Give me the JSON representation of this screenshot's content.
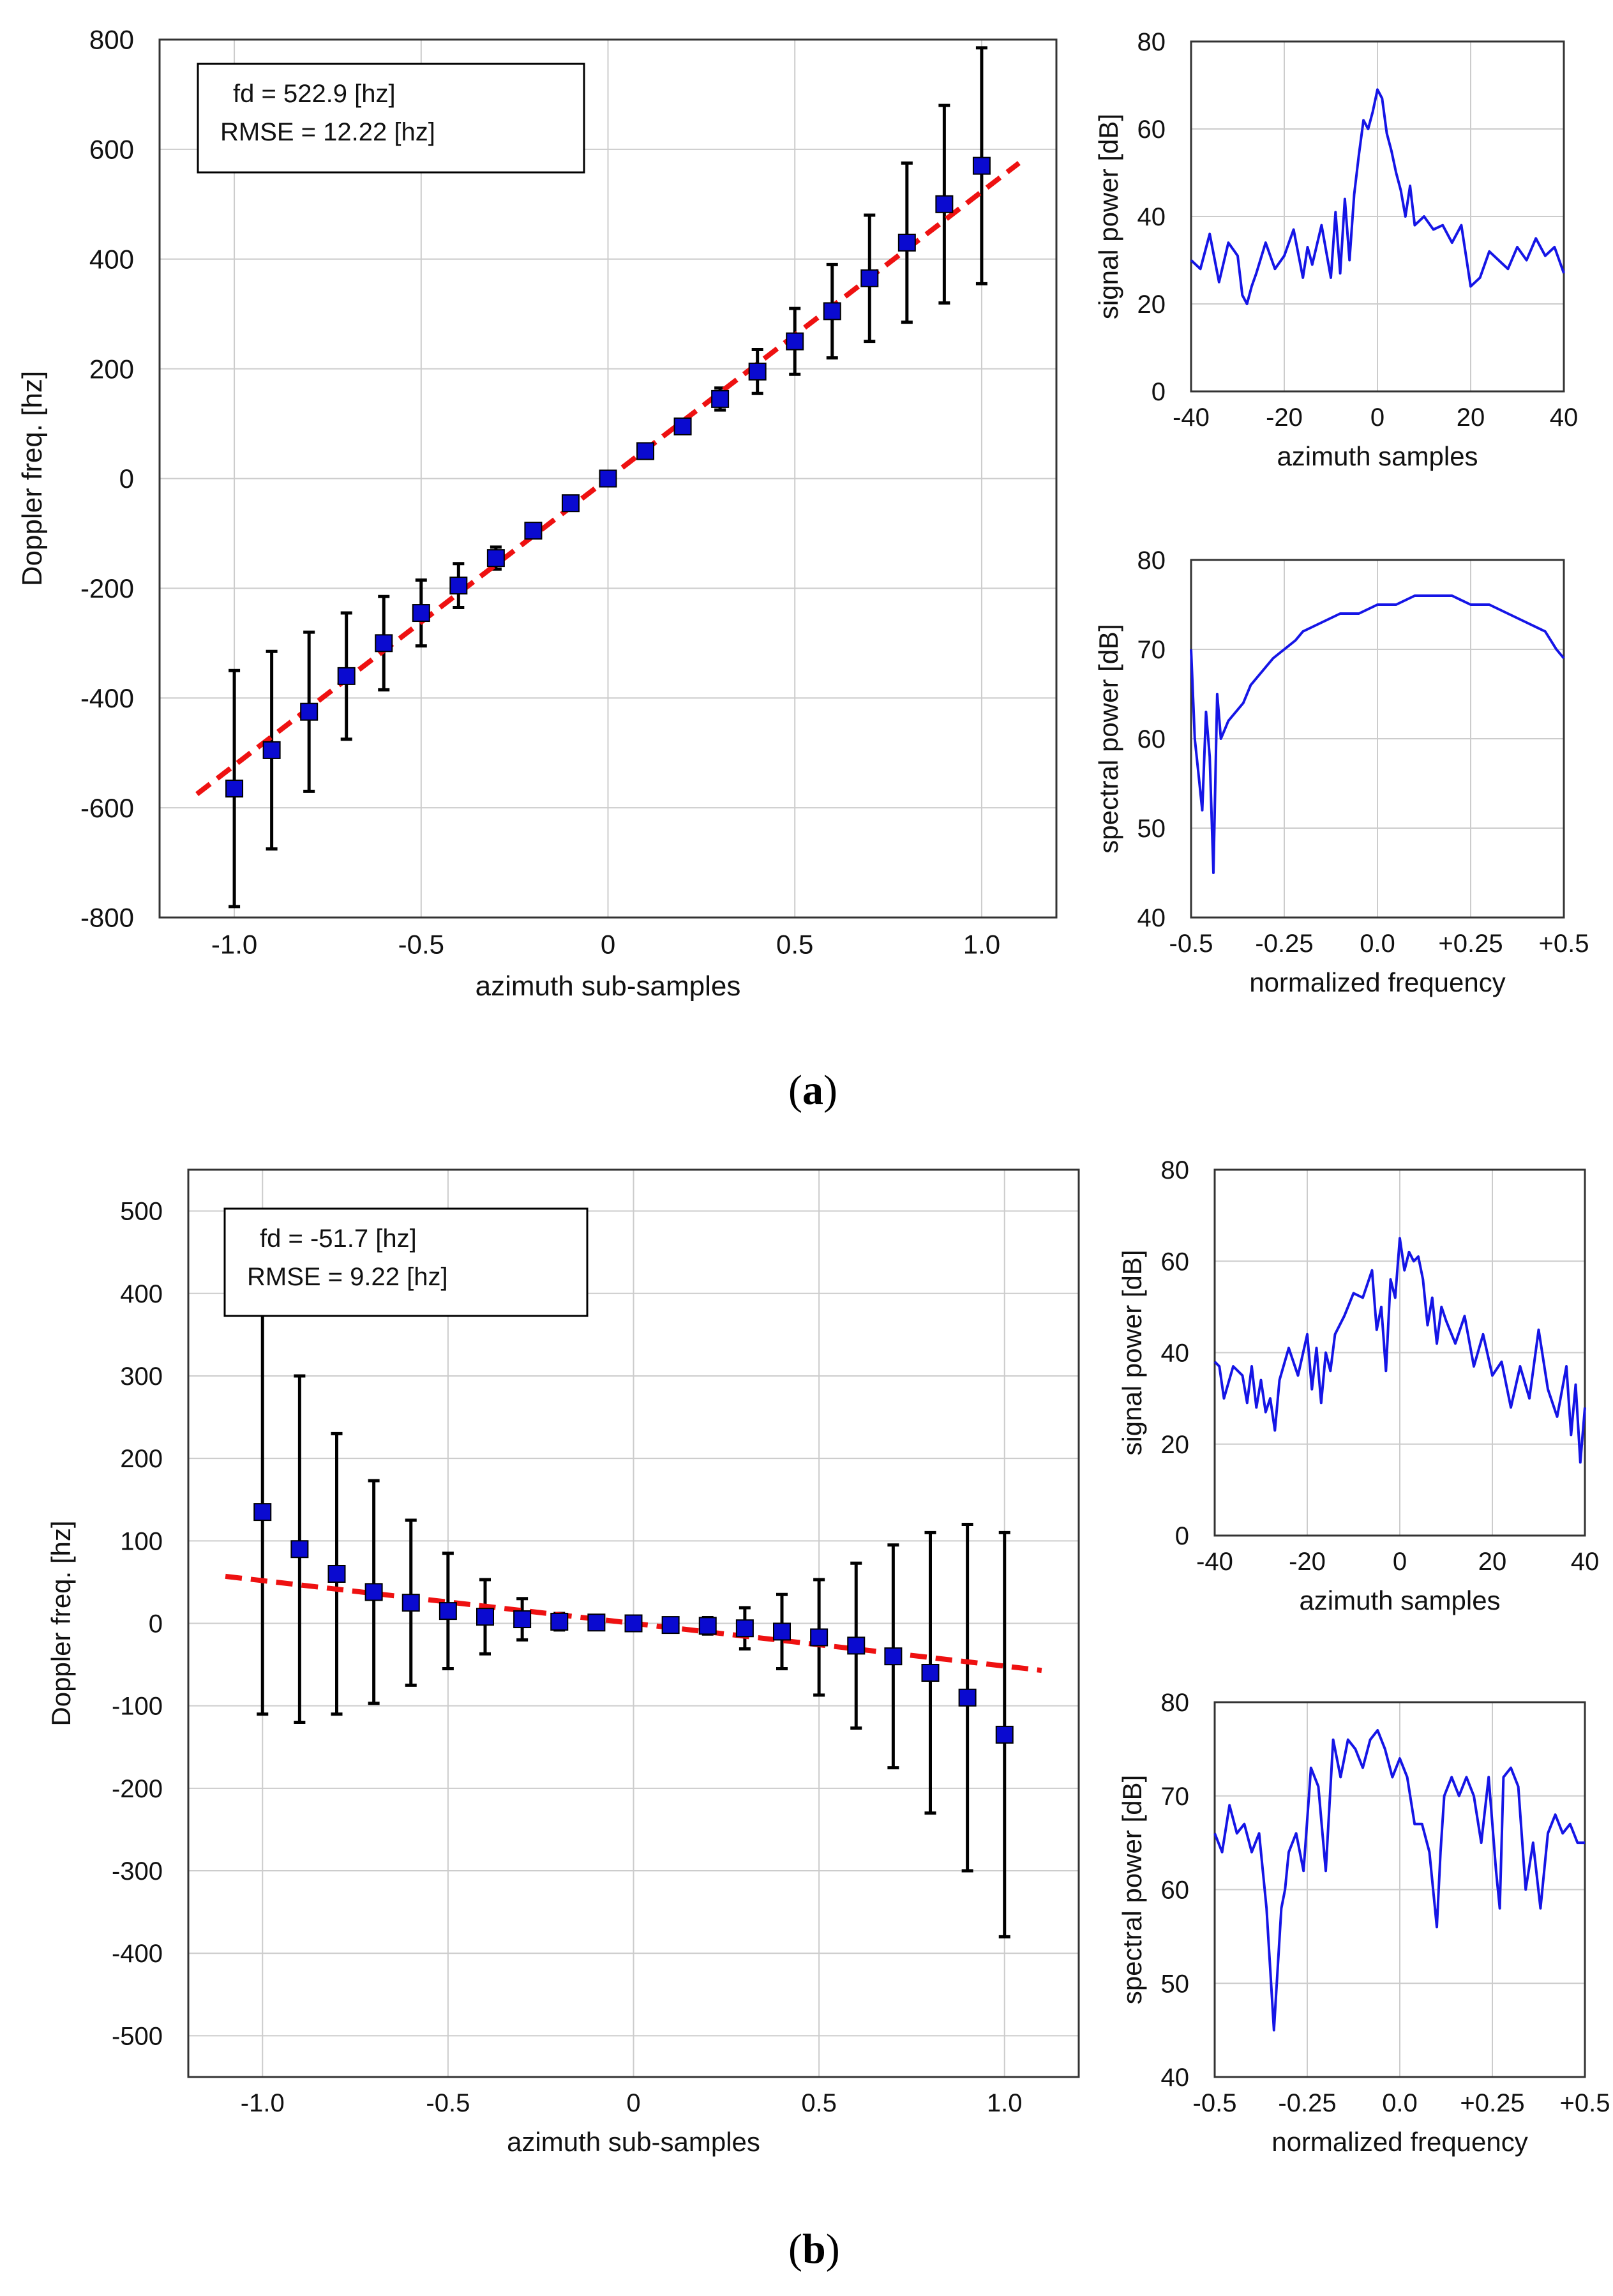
{
  "panels": [
    {
      "label": "a",
      "main": {
        "type": "scatter",
        "xlabel": "azimuth sub-samples",
        "ylabel": "Doppler freq. [hz]",
        "xlim": [
          -1.2,
          1.2
        ],
        "ylim": [
          -800,
          800
        ],
        "xticks": [
          -1.0,
          -0.5,
          0,
          0.5,
          1.0
        ],
        "xtick_labels": [
          "-1.0",
          "-0.5",
          "0",
          "0.5",
          "1.0"
        ],
        "yticks": [
          800,
          600,
          400,
          200,
          0,
          -200,
          -400,
          -600,
          -800
        ],
        "ytick_labels": [
          "800",
          "600",
          "400",
          "200",
          "0",
          "-200",
          "-400",
          "-600",
          "-800"
        ],
        "annotation": [
          "fd = 522.9 [hz]",
          "RMSE = 12.22 [hz]"
        ],
        "fit_line": {
          "x": [
            -1.1,
            1.1
          ],
          "y": [
            -575,
            575
          ]
        },
        "x": [
          -1.0,
          -0.9,
          -0.8,
          -0.7,
          -0.6,
          -0.5,
          -0.4,
          -0.3,
          -0.2,
          -0.1,
          0,
          0.1,
          0.2,
          0.3,
          0.4,
          0.5,
          0.6,
          0.7,
          0.8,
          0.9,
          1.0
        ],
        "y": [
          -565,
          -495,
          -425,
          -360,
          -300,
          -245,
          -195,
          -145,
          -95,
          -45,
          0,
          50,
          95,
          145,
          195,
          250,
          305,
          365,
          430,
          500,
          570
        ],
        "err": [
          215,
          180,
          145,
          115,
          85,
          60,
          40,
          20,
          5,
          5,
          3,
          5,
          8,
          20,
          40,
          60,
          85,
          115,
          145,
          180,
          215
        ]
      },
      "signal": {
        "type": "line",
        "xlabel": "azimuth samples",
        "ylabel": "signal power [dB]",
        "xlim": [
          -40,
          40
        ],
        "ylim": [
          0,
          80
        ],
        "xticks": [
          -40,
          -20,
          0,
          20,
          40
        ],
        "xtick_labels": [
          "-40",
          "-20",
          "0",
          "20",
          "40"
        ],
        "yticks": [
          80,
          60,
          40,
          20,
          0
        ],
        "ytick_labels": [
          "80",
          "60",
          "40",
          "20",
          "0"
        ],
        "x": [
          -40,
          -38,
          -36,
          -34,
          -32,
          -30,
          -29,
          -28,
          -27,
          -26,
          -24,
          -22,
          -20,
          -18,
          -16,
          -15,
          -14,
          -12,
          -10,
          -9,
          -8,
          -7,
          -6,
          -5,
          -4,
          -3,
          -2,
          -1,
          0,
          1,
          2,
          3,
          4,
          5,
          6,
          7,
          8,
          10,
          12,
          14,
          16,
          18,
          20,
          22,
          24,
          26,
          28,
          30,
          32,
          34,
          36,
          38,
          40
        ],
        "y": [
          30,
          28,
          36,
          25,
          34,
          31,
          22,
          20,
          24,
          27,
          34,
          28,
          31,
          37,
          26,
          33,
          29,
          38,
          26,
          41,
          27,
          44,
          30,
          45,
          54,
          62,
          60,
          64,
          69,
          67,
          59,
          55,
          50,
          46,
          40,
          47,
          38,
          40,
          37,
          38,
          34,
          38,
          24,
          26,
          32,
          30,
          28,
          33,
          30,
          35,
          31,
          33,
          27
        ]
      },
      "spectrum": {
        "type": "line",
        "xlabel": "normalized frequency",
        "ylabel": "spectral power [dB]",
        "xlim": [
          -0.5,
          0.5
        ],
        "ylim": [
          40,
          80
        ],
        "xticks": [
          -0.5,
          -0.25,
          0.0,
          0.25,
          0.5
        ],
        "xtick_labels": [
          "-0.5",
          "-0.25",
          "0.0",
          "+0.25",
          "+0.5"
        ],
        "yticks": [
          80,
          70,
          60,
          50,
          40
        ],
        "ytick_labels": [
          "80",
          "70",
          "60",
          "50",
          "40"
        ],
        "x": [
          -0.5,
          -0.49,
          -0.48,
          -0.47,
          -0.46,
          -0.45,
          -0.44,
          -0.43,
          -0.42,
          -0.41,
          -0.4,
          -0.38,
          -0.36,
          -0.34,
          -0.32,
          -0.3,
          -0.28,
          -0.25,
          -0.22,
          -0.2,
          -0.15,
          -0.1,
          -0.05,
          0.0,
          0.05,
          0.1,
          0.15,
          0.2,
          0.25,
          0.3,
          0.35,
          0.4,
          0.45,
          0.48,
          0.5
        ],
        "y": [
          70,
          60,
          56,
          52,
          63,
          58,
          45,
          65,
          60,
          61,
          62,
          63,
          64,
          66,
          67,
          68,
          69,
          70,
          71,
          72,
          73,
          74,
          74,
          75,
          75,
          76,
          76,
          76,
          75,
          75,
          74,
          73,
          72,
          70,
          69
        ]
      }
    },
    {
      "label": "b",
      "main": {
        "type": "scatter",
        "xlabel": "azimuth sub-samples",
        "ylabel": "Doppler freq. [hz]",
        "xlim": [
          -1.2,
          1.2
        ],
        "ylim": [
          -550,
          550
        ],
        "xticks": [
          -1.0,
          -0.5,
          0,
          0.5,
          1.0
        ],
        "xtick_labels": [
          "-1.0",
          "-0.5",
          "0",
          "0.5",
          "1.0"
        ],
        "yticks": [
          500,
          400,
          300,
          200,
          100,
          0,
          -100,
          -200,
          -300,
          -400,
          -500
        ],
        "ytick_labels": [
          "500",
          "400",
          "300",
          "200",
          "100",
          "0",
          "-100",
          "-200",
          "-300",
          "-400",
          "-500"
        ],
        "annotation": [
          "fd = -51.7 [hz]",
          "RMSE = 9.22 [hz]"
        ],
        "fit_line": {
          "x": [
            -1.1,
            1.1
          ],
          "y": [
            57,
            -57
          ]
        },
        "x": [
          -1.0,
          -0.9,
          -0.8,
          -0.7,
          -0.6,
          -0.5,
          -0.4,
          -0.3,
          -0.2,
          -0.1,
          0,
          0.1,
          0.2,
          0.3,
          0.4,
          0.5,
          0.6,
          0.7,
          0.8,
          0.9,
          1.0
        ],
        "y": [
          135,
          90,
          60,
          38,
          25,
          15,
          8,
          5,
          2,
          1,
          0,
          -2,
          -3,
          -6,
          -10,
          -17,
          -27,
          -40,
          -60,
          -90,
          -135
        ],
        "err": [
          245,
          210,
          170,
          135,
          100,
          70,
          45,
          25,
          10,
          5,
          3,
          5,
          10,
          25,
          45,
          70,
          100,
          135,
          170,
          210,
          245
        ]
      },
      "signal": {
        "type": "line",
        "xlabel": "azimuth samples",
        "ylabel": "signal power [dB]",
        "xlim": [
          -40,
          40
        ],
        "ylim": [
          0,
          80
        ],
        "xticks": [
          -40,
          -20,
          0,
          20,
          40
        ],
        "xtick_labels": [
          "-40",
          "-20",
          "0",
          "20",
          "40"
        ],
        "yticks": [
          80,
          60,
          40,
          20,
          0
        ],
        "ytick_labels": [
          "80",
          "60",
          "40",
          "20",
          "0"
        ],
        "x": [
          -40,
          -39,
          -38,
          -36,
          -34,
          -33,
          -32,
          -31,
          -30,
          -29,
          -28,
          -27,
          -26,
          -24,
          -22,
          -20,
          -19,
          -18,
          -17,
          -16,
          -15,
          -14,
          -12,
          -10,
          -8,
          -6,
          -5,
          -4,
          -3,
          -2,
          -1,
          0,
          1,
          2,
          3,
          4,
          5,
          6,
          7,
          8,
          9,
          10,
          12,
          14,
          16,
          18,
          20,
          22,
          24,
          26,
          28,
          30,
          32,
          34,
          36,
          37,
          38,
          39,
          40
        ],
        "y": [
          38,
          37,
          30,
          37,
          35,
          29,
          37,
          28,
          34,
          27,
          30,
          23,
          34,
          41,
          35,
          44,
          32,
          41,
          29,
          40,
          36,
          44,
          48,
          53,
          52,
          58,
          45,
          50,
          36,
          56,
          52,
          65,
          58,
          62,
          60,
          61,
          56,
          46,
          52,
          42,
          50,
          47,
          42,
          48,
          37,
          44,
          35,
          38,
          28,
          37,
          30,
          45,
          32,
          26,
          37,
          22,
          33,
          16,
          28
        ]
      },
      "spectrum": {
        "type": "line",
        "xlabel": "normalized frequency",
        "ylabel": "spectral power [dB]",
        "xlim": [
          -0.5,
          0.5
        ],
        "ylim": [
          40,
          80
        ],
        "xticks": [
          -0.5,
          -0.25,
          0.0,
          0.25,
          0.5
        ],
        "xtick_labels": [
          "-0.5",
          "-0.25",
          "0.0",
          "+0.25",
          "+0.5"
        ],
        "yticks": [
          80,
          70,
          60,
          50,
          40
        ],
        "ytick_labels": [
          "80",
          "70",
          "60",
          "50",
          "40"
        ],
        "x": [
          -0.5,
          -0.48,
          -0.46,
          -0.44,
          -0.42,
          -0.4,
          -0.38,
          -0.36,
          -0.34,
          -0.32,
          -0.31,
          -0.3,
          -0.28,
          -0.26,
          -0.24,
          -0.22,
          -0.2,
          -0.19,
          -0.18,
          -0.16,
          -0.14,
          -0.12,
          -0.1,
          -0.08,
          -0.06,
          -0.04,
          -0.02,
          0.0,
          0.02,
          0.04,
          0.06,
          0.08,
          0.1,
          0.11,
          0.12,
          0.14,
          0.16,
          0.18,
          0.2,
          0.22,
          0.24,
          0.26,
          0.27,
          0.28,
          0.3,
          0.32,
          0.34,
          0.36,
          0.38,
          0.4,
          0.42,
          0.44,
          0.46,
          0.48,
          0.5
        ],
        "y": [
          66,
          64,
          69,
          66,
          67,
          64,
          66,
          58,
          45,
          58,
          60,
          64,
          66,
          62,
          73,
          71,
          62,
          69,
          76,
          72,
          76,
          75,
          73,
          76,
          77,
          75,
          72,
          74,
          72,
          67,
          67,
          64,
          56,
          64,
          70,
          72,
          70,
          72,
          70,
          65,
          72,
          62,
          58,
          72,
          73,
          71,
          60,
          65,
          58,
          66,
          68,
          66,
          67,
          65,
          65
        ]
      }
    }
  ]
}
